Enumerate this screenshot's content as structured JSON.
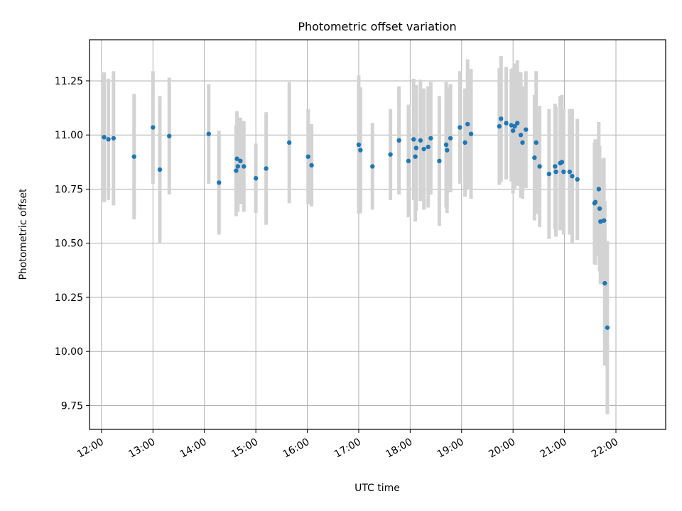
{
  "chart_data": {
    "type": "scatter",
    "title": "Photometric offset variation",
    "xlabel": "UTC time",
    "ylabel": "Photometric offset",
    "x_unit": "time of day (HH:MM, UTC)",
    "xlim": [
      "11:46",
      "22:58"
    ],
    "ylim": [
      9.64,
      11.44
    ],
    "xticks": [
      "12:00",
      "13:00",
      "14:00",
      "15:00",
      "16:00",
      "17:00",
      "18:00",
      "19:00",
      "20:00",
      "21:00",
      "22:00"
    ],
    "yticks": [
      "9.75",
      "10.00",
      "10.25",
      "10.50",
      "10.75",
      "11.00",
      "11.25"
    ],
    "grid": true,
    "legend": "none",
    "point_color": "#1f77b4",
    "errorbar_color": "#d3d3d3",
    "series": [
      {
        "x": [
          "12:03",
          "12:08",
          "12:14",
          "12:38",
          "13:00",
          "13:08",
          "13:19",
          "14:05",
          "14:17",
          "14:37",
          "14:38",
          "14:39",
          "14:42",
          "14:46",
          "15:00",
          "15:12",
          "15:39",
          "16:01",
          "16:05",
          "17:00",
          "17:02",
          "17:16",
          "17:37",
          "17:47",
          "17:58",
          "18:04",
          "18:06",
          "18:07",
          "18:12",
          "18:16",
          "18:21",
          "18:24",
          "18:34",
          "18:42",
          "18:43",
          "18:47",
          "18:58",
          "19:04",
          "19:07",
          "19:11",
          "19:44",
          "19:46",
          "19:52",
          "19:58",
          "20:00",
          "20:02",
          "20:05",
          "20:09",
          "20:11",
          "20:15",
          "20:25",
          "20:27",
          "20:31",
          "20:42",
          "20:49",
          "20:50",
          "20:55",
          "20:57",
          "20:59",
          "21:06",
          "21:09",
          "21:15",
          "21:35",
          "21:36",
          "21:40",
          "21:41",
          "21:42",
          "21:46",
          "21:47",
          "21:50"
        ],
        "y": [
          10.99,
          10.98,
          10.985,
          10.9,
          11.035,
          10.84,
          10.995,
          11.005,
          10.78,
          10.835,
          10.89,
          10.855,
          10.88,
          10.855,
          10.8,
          10.845,
          10.965,
          10.9,
          10.86,
          10.955,
          10.93,
          10.855,
          10.91,
          10.975,
          10.88,
          10.98,
          10.9,
          10.94,
          10.975,
          10.935,
          10.945,
          10.985,
          10.88,
          10.955,
          10.93,
          10.985,
          11.035,
          10.965,
          11.05,
          11.005,
          11.04,
          11.075,
          11.055,
          11.045,
          11.02,
          11.04,
          11.055,
          11.0,
          10.965,
          11.025,
          10.895,
          10.965,
          10.855,
          10.82,
          10.855,
          10.83,
          10.87,
          10.875,
          10.83,
          10.83,
          10.81,
          10.795,
          10.685,
          10.69,
          10.75,
          10.66,
          10.6,
          10.605,
          10.315,
          10.11
        ],
        "yerr": [
          0.3,
          0.28,
          0.31,
          0.29,
          0.26,
          0.34,
          0.27,
          0.23,
          0.24,
          0.21,
          0.22,
          0.21,
          0.2,
          0.21,
          0.16,
          0.26,
          0.28,
          0.22,
          0.19,
          0.32,
          0.29,
          0.2,
          0.21,
          0.25,
          0.26,
          0.28,
          0.3,
          0.29,
          0.28,
          0.28,
          0.28,
          0.26,
          0.3,
          0.29,
          0.29,
          0.25,
          0.26,
          0.25,
          0.3,
          0.3,
          0.27,
          0.29,
          0.26,
          0.26,
          0.29,
          0.29,
          0.29,
          0.29,
          0.26,
          0.27,
          0.29,
          0.33,
          0.28,
          0.3,
          0.29,
          0.3,
          0.31,
          0.31,
          0.29,
          0.29,
          0.31,
          0.28,
          0.28,
          0.29,
          0.31,
          0.29,
          0.29,
          0.29,
          0.38,
          0.4
        ]
      }
    ]
  }
}
